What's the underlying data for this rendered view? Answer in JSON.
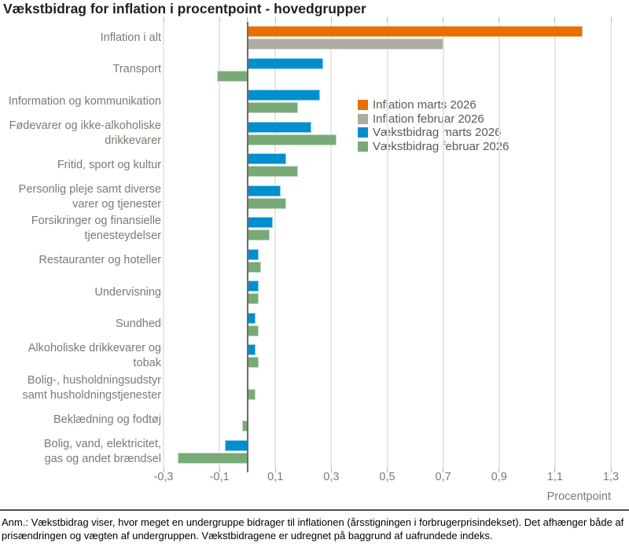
{
  "title": "Vækstbidrag for inflation i procentpoint - hovedgrupper",
  "footnote": "Anm.: Vækstbidrag viser, hvor meget en undergruppe bidrager til inflationen (årsstigningen i forbrugerprisindekset). Det afhænger både af prisændringen og vægten af undergruppen. Vækstbidragene er udregnet på baggrund af uafrundede indeks.",
  "chart_data": {
    "type": "bar",
    "orientation": "horizontal",
    "title": "Vækstbidrag for inflation i procentpoint - hovedgrupper",
    "xlabel": "Procentpoint",
    "xlim": [
      -0.3,
      1.3
    ],
    "grid": true,
    "legend_position": "inside-top-right",
    "colors": {
      "inflation_marts": "#e86e00",
      "inflation_februar": "#aeab9f",
      "vaekstbidrag_marts": "#008fce",
      "vaekstbidrag_februar": "#78aa78"
    },
    "legend": [
      {
        "label": "Inflation marts 2026",
        "color_key": "inflation_marts"
      },
      {
        "label": "Inflation februar 2026",
        "color_key": "inflation_februar"
      },
      {
        "label": "Vækstbidrag marts 2026",
        "color_key": "vaekstbidrag_marts"
      },
      {
        "label": "Vækstbidrag februar 2026",
        "color_key": "vaekstbidrag_februar"
      }
    ],
    "xticks": [
      {
        "value": -0.3,
        "label": "-0,3"
      },
      {
        "value": -0.1,
        "label": "-0,1"
      },
      {
        "value": 0.1,
        "label": "0,1"
      },
      {
        "value": 0.3,
        "label": "0,3"
      },
      {
        "value": 0.5,
        "label": "0,5"
      },
      {
        "value": 0.7,
        "label": "0,7"
      },
      {
        "value": 0.9,
        "label": "0,9"
      },
      {
        "value": 1.1,
        "label": "1,1"
      },
      {
        "value": 1.3,
        "label": "1,3"
      }
    ],
    "categories": [
      {
        "label": "Inflation i alt",
        "group": "inflation",
        "marts_2026": 1.2,
        "februar_2026": 0.7
      },
      {
        "label": "Transport",
        "group": "vaekstbidrag",
        "marts_2026": 0.27,
        "februar_2026": -0.11
      },
      {
        "label": "Information og kommunikation",
        "group": "vaekstbidrag",
        "marts_2026": 0.26,
        "februar_2026": 0.18
      },
      {
        "label": "Fødevarer og ikke-alkoholiske\ndrikkevarer",
        "group": "vaekstbidrag",
        "marts_2026": 0.23,
        "februar_2026": 0.32
      },
      {
        "label": "Fritid, sport og kultur",
        "group": "vaekstbidrag",
        "marts_2026": 0.14,
        "februar_2026": 0.18
      },
      {
        "label": "Personlig pleje samt diverse\nvarer og tjenester",
        "group": "vaekstbidrag",
        "marts_2026": 0.12,
        "februar_2026": 0.14
      },
      {
        "label": "Forsikringer og finansielle\ntjenesteydelser",
        "group": "vaekstbidrag",
        "marts_2026": 0.09,
        "februar_2026": 0.08
      },
      {
        "label": "Restauranter og hoteller",
        "group": "vaekstbidrag",
        "marts_2026": 0.04,
        "februar_2026": 0.05
      },
      {
        "label": "Undervisning",
        "group": "vaekstbidrag",
        "marts_2026": 0.04,
        "februar_2026": 0.04
      },
      {
        "label": "Sundhed",
        "group": "vaekstbidrag",
        "marts_2026": 0.03,
        "februar_2026": 0.04
      },
      {
        "label": "Alkoholiske drikkevarer og\ntobak",
        "group": "vaekstbidrag",
        "marts_2026": 0.03,
        "februar_2026": 0.04
      },
      {
        "label": "Bolig-, husholdningsudstyr\nsamt husholdningstjenester",
        "group": "vaekstbidrag",
        "marts_2026": 0.0,
        "februar_2026": 0.03
      },
      {
        "label": "Beklædning og fodtøj",
        "group": "vaekstbidrag",
        "marts_2026": 0.0,
        "februar_2026": -0.02
      },
      {
        "label": "Bolig, vand, elektricitet,\ngas og andet brændsel",
        "group": "vaekstbidrag",
        "marts_2026": -0.08,
        "februar_2026": -0.25
      }
    ]
  }
}
